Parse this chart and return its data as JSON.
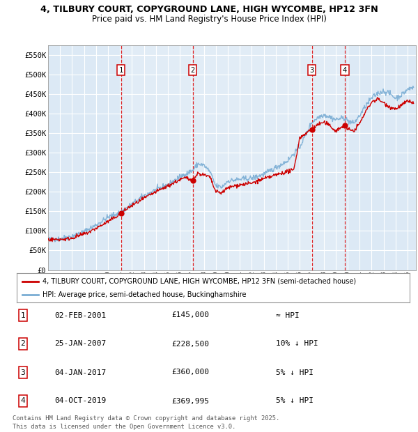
{
  "title1": "4, TILBURY COURT, COPYGROUND LANE, HIGH WYCOMBE, HP12 3FN",
  "title2": "Price paid vs. HM Land Registry's House Price Index (HPI)",
  "ylim": [
    0,
    575000
  ],
  "yticks": [
    0,
    50000,
    100000,
    150000,
    200000,
    250000,
    300000,
    350000,
    400000,
    450000,
    500000,
    550000
  ],
  "ytick_labels": [
    "£0",
    "£50K",
    "£100K",
    "£150K",
    "£200K",
    "£250K",
    "£300K",
    "£350K",
    "£400K",
    "£450K",
    "£500K",
    "£550K"
  ],
  "xlim_start": 1995.0,
  "xlim_end": 2025.7,
  "background_color": "#ffffff",
  "plot_bg_color": "#dce9f5",
  "grid_color": "#ffffff",
  "sale_color": "#cc0000",
  "hpi_color": "#7aadd4",
  "vline_color": "#dd0000",
  "legend_label_sale": "4, TILBURY COURT, COPYGROUND LANE, HIGH WYCOMBE, HP12 3FN (semi-detached house)",
  "legend_label_hpi": "HPI: Average price, semi-detached house, Buckinghamshire",
  "transactions": [
    {
      "num": 1,
      "date": "02-FEB-2001",
      "price": "£145,000",
      "hpi_rel": "≈ HPI",
      "year": 2001.09,
      "price_val": 145000
    },
    {
      "num": 2,
      "date": "25-JAN-2007",
      "price": "£228,500",
      "hpi_rel": "10% ↓ HPI",
      "year": 2007.07,
      "price_val": 228500
    },
    {
      "num": 3,
      "date": "04-JAN-2017",
      "price": "£360,000",
      "hpi_rel": "5% ↓ HPI",
      "year": 2017.01,
      "price_val": 360000
    },
    {
      "num": 4,
      "date": "04-OCT-2019",
      "price": "£369,995",
      "hpi_rel": "5% ↓ HPI",
      "year": 2019.76,
      "price_val": 369995
    }
  ],
  "footnote1": "Contains HM Land Registry data © Crown copyright and database right 2025.",
  "footnote2": "This data is licensed under the Open Government Licence v3.0.",
  "shaded_region": [
    2001.09,
    2019.76
  ],
  "hpi_anchors_x": [
    1995.0,
    1996.0,
    1997.0,
    1998.0,
    1999.0,
    2000.0,
    2001.09,
    2002.0,
    2003.0,
    2004.0,
    2005.0,
    2006.0,
    2007.07,
    2007.5,
    2008.0,
    2008.5,
    2009.0,
    2009.5,
    2010.0,
    2011.0,
    2012.0,
    2013.0,
    2014.0,
    2015.0,
    2016.0,
    2017.01,
    2017.5,
    2018.0,
    2018.5,
    2019.0,
    2019.76,
    2020.0,
    2020.5,
    2021.0,
    2021.5,
    2022.0,
    2022.5,
    2023.0,
    2023.5,
    2024.0,
    2024.5,
    2025.0,
    2025.5
  ],
  "hpi_anchors_y": [
    78000,
    80000,
    87000,
    98000,
    115000,
    135000,
    148000,
    168000,
    190000,
    205000,
    218000,
    238000,
    255000,
    272000,
    268000,
    252000,
    215000,
    212000,
    228000,
    232000,
    235000,
    245000,
    262000,
    280000,
    315000,
    378000,
    390000,
    398000,
    392000,
    385000,
    390000,
    382000,
    375000,
    395000,
    420000,
    440000,
    452000,
    458000,
    452000,
    440000,
    448000,
    462000,
    468000
  ],
  "sale_anchors_x": [
    1995.0,
    1995.5,
    1996.0,
    1996.5,
    1997.0,
    1997.5,
    1998.0,
    1998.5,
    1999.0,
    1999.5,
    2000.0,
    2000.5,
    2001.09,
    2001.5,
    2002.0,
    2003.0,
    2004.0,
    2005.0,
    2005.5,
    2006.0,
    2006.5,
    2007.07,
    2007.5,
    2008.0,
    2008.5,
    2009.0,
    2009.5,
    2010.0,
    2010.5,
    2011.0,
    2011.5,
    2012.0,
    2012.5,
    2013.0,
    2013.5,
    2014.0,
    2014.5,
    2015.0,
    2015.5,
    2016.0,
    2016.5,
    2017.01,
    2017.5,
    2018.0,
    2018.5,
    2019.0,
    2019.76,
    2020.0,
    2020.5,
    2021.0,
    2021.5,
    2022.0,
    2022.5,
    2023.0,
    2023.5,
    2024.0,
    2024.5,
    2025.0,
    2025.5
  ],
  "sale_anchors_y": [
    78000,
    78000,
    78500,
    79000,
    82000,
    87000,
    92000,
    98000,
    107000,
    115000,
    124000,
    133000,
    145000,
    155000,
    165000,
    183000,
    200000,
    215000,
    223000,
    231000,
    236000,
    228500,
    248000,
    243000,
    238000,
    200000,
    198000,
    210000,
    215000,
    218000,
    220000,
    222000,
    228000,
    233000,
    238000,
    243000,
    248000,
    252000,
    255000,
    338000,
    350000,
    360000,
    372000,
    378000,
    370000,
    356000,
    369995,
    360000,
    356000,
    375000,
    405000,
    430000,
    438000,
    428000,
    418000,
    412000,
    422000,
    432000,
    428000
  ]
}
